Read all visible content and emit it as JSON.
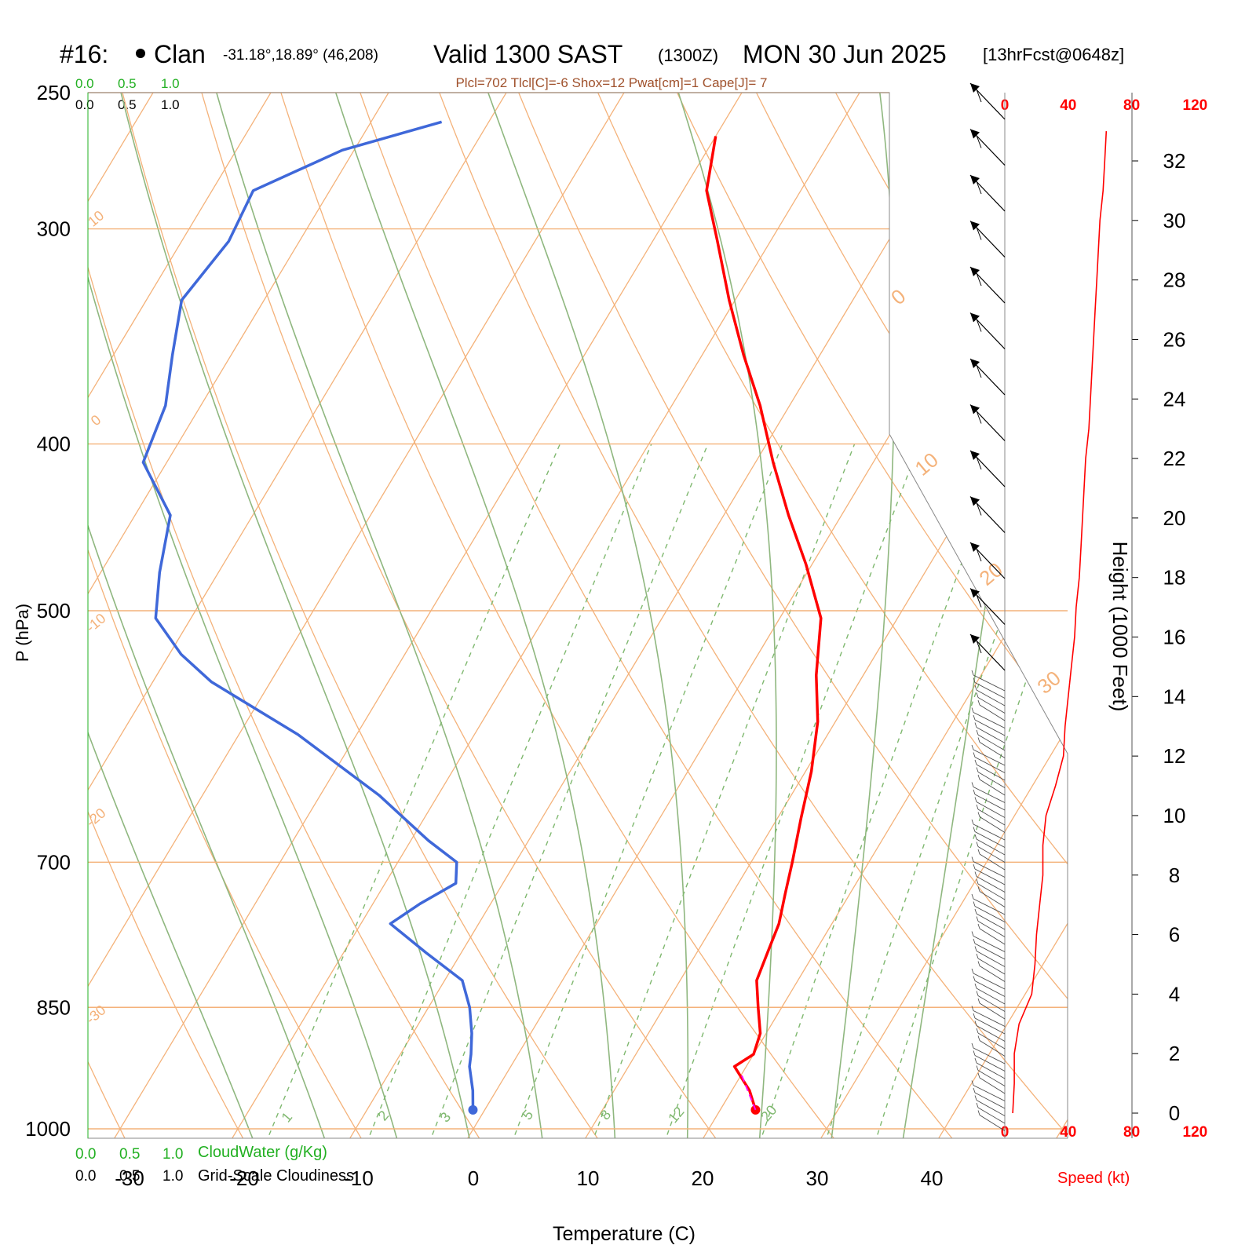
{
  "header": {
    "station_id": "#16:",
    "station_name": "Clan",
    "station_coords": "-31.18°,18.89° (46,208)",
    "valid": "Valid 1300 SAST",
    "zulu": "(1300Z)",
    "date": "MON 30 Jun 2025",
    "forecast": "[13hrFcst@0648z]",
    "indices": "Plcl=702 Tlcl[C]=-6 Shox=12 Pwat[cm]=1 Cape[J]= 7"
  },
  "scales": {
    "top_green": [
      "0.0",
      "0.5",
      "1.0"
    ],
    "top_black": [
      "0.0",
      "0.5",
      "1.0"
    ],
    "bottom_green": [
      "0.0",
      "0.5",
      "1.0"
    ],
    "bottom_black": [
      "0.0",
      "0.5",
      "1.0"
    ],
    "cloudwater_label": "CloudWater (g/Kg)",
    "cloudiness_label": "Grid-Scale Cloudiness"
  },
  "colors": {
    "isotherm": "#f4b27a",
    "dry_adiabat": "#8fb77f",
    "mixing_ratio": "#7fb86f",
    "temperature": "#ff0000",
    "dewpoint": "#3f68d9",
    "parcel": "#ff00ff",
    "label_green": "#22b022",
    "indices_text": "#a0522d",
    "speed": "#ff0000"
  },
  "chart_data": {
    "type": "line",
    "title": "",
    "xlabel": "Temperature (C)",
    "ylabel": "P (hPa)",
    "y2label": "Height (1000 Feet)",
    "xlim": [
      -30,
      40
    ],
    "ylim_hpa": [
      1000,
      250
    ],
    "x_ticks": [
      "-30",
      "-20",
      "-10",
      "0",
      "10",
      "20",
      "30",
      "40"
    ],
    "y_ticks": [
      "250",
      "300",
      "400",
      "500",
      "700",
      "850",
      "1000"
    ],
    "height_ticks": [
      "0",
      "2",
      "4",
      "6",
      "8",
      "10",
      "12",
      "14",
      "16",
      "18",
      "20",
      "22",
      "24",
      "26",
      "28",
      "30",
      "32"
    ],
    "speed_ticks": [
      "0",
      "40",
      "80",
      "120"
    ],
    "speed_label": "Speed (kt)",
    "isotherm_labels": [
      "10",
      "0",
      "-10",
      "-20",
      "-30",
      "0",
      "10",
      "20",
      "30"
    ],
    "mixing_ratio_labels": [
      "1",
      "2",
      "3",
      "5",
      "8",
      "12",
      "20"
    ],
    "series": [
      {
        "name": "Temperature",
        "points": [
          [
            23.0,
            975
          ],
          [
            21.5,
            950
          ],
          [
            19.0,
            920
          ],
          [
            20.0,
            905
          ],
          [
            19.5,
            880
          ],
          [
            18.0,
            850
          ],
          [
            16.5,
            820
          ],
          [
            16.0,
            790
          ],
          [
            15.5,
            760
          ],
          [
            14.5,
            730
          ],
          [
            13.5,
            700
          ],
          [
            12.0,
            660
          ],
          [
            10.5,
            620
          ],
          [
            8.5,
            580
          ],
          [
            6.0,
            545
          ],
          [
            3.5,
            505
          ],
          [
            -0.5,
            470
          ],
          [
            -4.5,
            440
          ],
          [
            -8.5,
            410
          ],
          [
            -12.5,
            380
          ],
          [
            -16.5,
            355
          ],
          [
            -20.5,
            330
          ],
          [
            -24.5,
            305
          ],
          [
            -28.0,
            285
          ],
          [
            -30.0,
            265
          ]
        ]
      },
      {
        "name": "Dewpoint",
        "points": [
          [
            -1.0,
            975
          ],
          [
            -2.0,
            950
          ],
          [
            -3.5,
            920
          ],
          [
            -4.0,
            905
          ],
          [
            -5.0,
            880
          ],
          [
            -6.5,
            850
          ],
          [
            -8.5,
            820
          ],
          [
            -13.0,
            790
          ],
          [
            -17.5,
            760
          ],
          [
            -16.0,
            740
          ],
          [
            -14.0,
            720
          ],
          [
            -15.0,
            700
          ],
          [
            -18.5,
            680
          ],
          [
            -25.0,
            640
          ],
          [
            -35.0,
            590
          ],
          [
            -45.0,
            550
          ],
          [
            -49.0,
            530
          ],
          [
            -53.0,
            505
          ],
          [
            -55.0,
            475
          ],
          [
            -57.0,
            440
          ],
          [
            -62.0,
            410
          ],
          [
            -63.0,
            380
          ],
          [
            -65.0,
            355
          ],
          [
            -67.0,
            330
          ],
          [
            -66.0,
            305
          ],
          [
            -66.5,
            285
          ],
          [
            -61.0,
            270
          ],
          [
            -54.0,
            260
          ]
        ]
      }
    ],
    "wind_speed_kt": [
      [
        0,
        5
      ],
      [
        1,
        6
      ],
      [
        2,
        6
      ],
      [
        3,
        9
      ],
      [
        4,
        17
      ],
      [
        5,
        19
      ],
      [
        6,
        20
      ],
      [
        7,
        22
      ],
      [
        8,
        24
      ],
      [
        9,
        24
      ],
      [
        10,
        26
      ],
      [
        11,
        32
      ],
      [
        12,
        37
      ],
      [
        13,
        38
      ],
      [
        14,
        40
      ],
      [
        15,
        42
      ],
      [
        16,
        44
      ],
      [
        17,
        45
      ],
      [
        18,
        47
      ],
      [
        19,
        48
      ],
      [
        20,
        49
      ],
      [
        21,
        50
      ],
      [
        22,
        51
      ],
      [
        23,
        53
      ],
      [
        24,
        54
      ],
      [
        25,
        55
      ],
      [
        26,
        56
      ],
      [
        27,
        57
      ],
      [
        28,
        58
      ],
      [
        29,
        59
      ],
      [
        30,
        60
      ],
      [
        31,
        62
      ],
      [
        32,
        63
      ],
      [
        33,
        64
      ]
    ]
  }
}
